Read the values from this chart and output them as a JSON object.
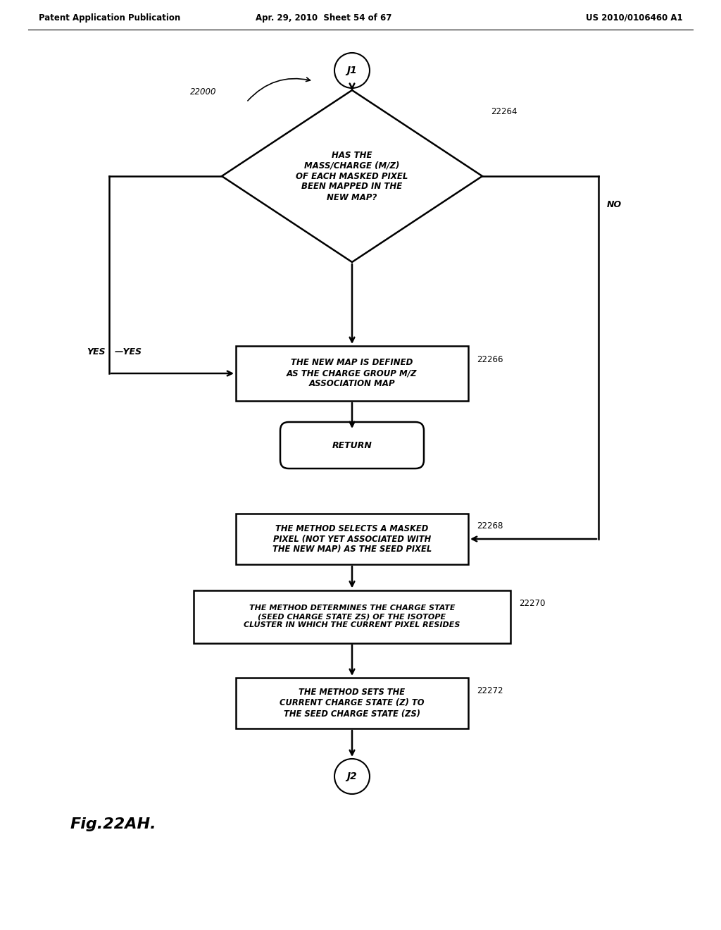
{
  "bg_color": "#ffffff",
  "header_left": "Patent Application Publication",
  "header_mid": "Apr. 29, 2010  Sheet 54 of 67",
  "header_right": "US 2010/0106460 A1",
  "fig_label": "Fig.22AH.",
  "j1_label": "J1",
  "j2_label": "J2",
  "label_22000": "22000",
  "diamond_text": "HAS THE\nMASS/CHARGE (M/Z)\nOF EACH MASKED PIXEL\nBEEN MAPPED IN THE\nNEW MAP?",
  "diamond_ref": "22264",
  "box1_text": "THE NEW MAP IS DEFINED\nAS THE CHARGE GROUP M/Z\nASSOCIATION MAP",
  "box1_ref": "22266",
  "return_text": "RETURN",
  "box2_text": "THE METHOD SELECTS A MASKED\nPIXEL (NOT YET ASSOCIATED WITH\nTHE NEW MAP) AS THE SEED PIXEL",
  "box2_ref": "22268",
  "box3_text": "THE METHOD DETERMINES THE CHARGE STATE\n(SEED CHARGE STATE ZS) OF THE ISOTOPE\nCLUSTER IN WHICH THE CURRENT PIXEL RESIDES",
  "box3_ref": "22270",
  "box4_text": "THE METHOD SETS THE\nCURRENT CHARGE STATE (Z) TO\nTHE SEED CHARGE STATE (ZS)",
  "box4_ref": "22272",
  "yes_label": "YES",
  "no_label": "NO"
}
